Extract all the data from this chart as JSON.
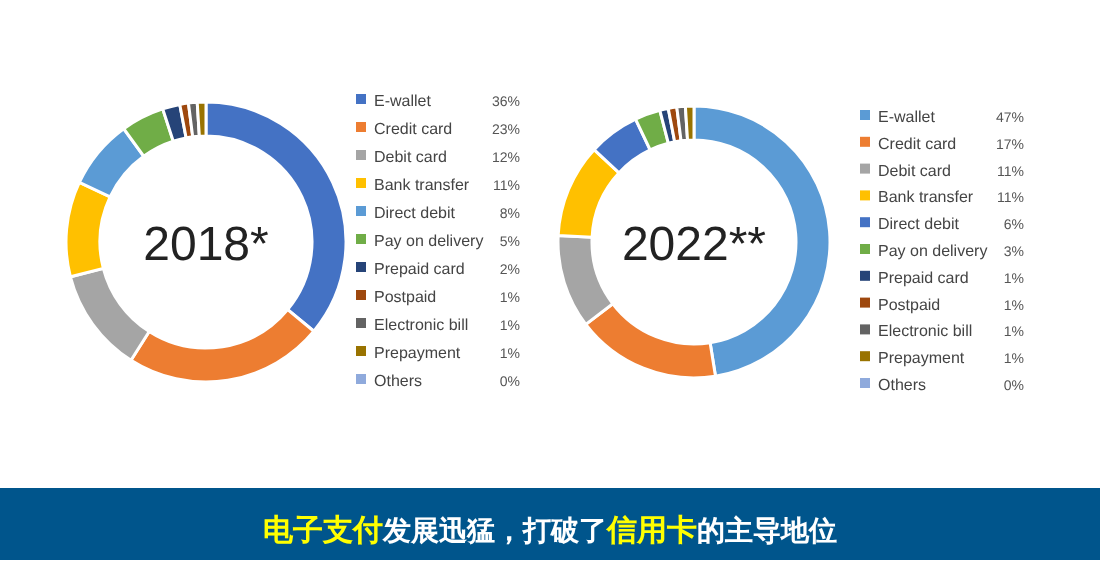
{
  "chart_data": [
    {
      "type": "donut",
      "title": "2018*",
      "legend": "right",
      "categories": [
        "E-wallet",
        "Credit card",
        "Debit card",
        "Bank transfer",
        "Direct debit",
        "Pay on delivery",
        "Prepaid card",
        "Postpaid",
        "Electronic bill",
        "Prepayment",
        "Others"
      ],
      "values": [
        36,
        23,
        12,
        11,
        8,
        5,
        2,
        1,
        1,
        1,
        0
      ],
      "value_labels": [
        "36%",
        "23%",
        "12%",
        "11%",
        "8%",
        "5%",
        "2%",
        "1%",
        "1%",
        "1%",
        "0%"
      ],
      "colors": [
        "#4472c4",
        "#ed7d31",
        "#a5a5a5",
        "#ffc000",
        "#5b9bd5",
        "#70ad47",
        "#264478",
        "#9e480e",
        "#636363",
        "#997300",
        "#8faadc"
      ]
    },
    {
      "type": "donut",
      "title": "2022**",
      "legend": "right",
      "categories": [
        "E-wallet",
        "Credit card",
        "Debit card",
        "Bank transfer",
        "Direct debit",
        "Pay on delivery",
        "Prepaid card",
        "Postpaid",
        "Electronic bill",
        "Prepayment",
        "Others"
      ],
      "values": [
        47,
        17,
        11,
        11,
        6,
        3,
        1,
        1,
        1,
        1,
        0
      ],
      "value_labels": [
        "47%",
        "17%",
        "11%",
        "11%",
        "6%",
        "3%",
        "1%",
        "1%",
        "1%",
        "1%",
        "0%"
      ],
      "colors": [
        "#5b9bd5",
        "#ed7d31",
        "#a5a5a5",
        "#ffc000",
        "#4472c4",
        "#70ad47",
        "#264478",
        "#9e480e",
        "#636363",
        "#997300",
        "#8faadc"
      ]
    },
    {
      "type": "other",
      "annotations": [
        "电子支付",
        "发展迅猛，打破了",
        "信用卡",
        "的主导地位"
      ]
    }
  ]
}
